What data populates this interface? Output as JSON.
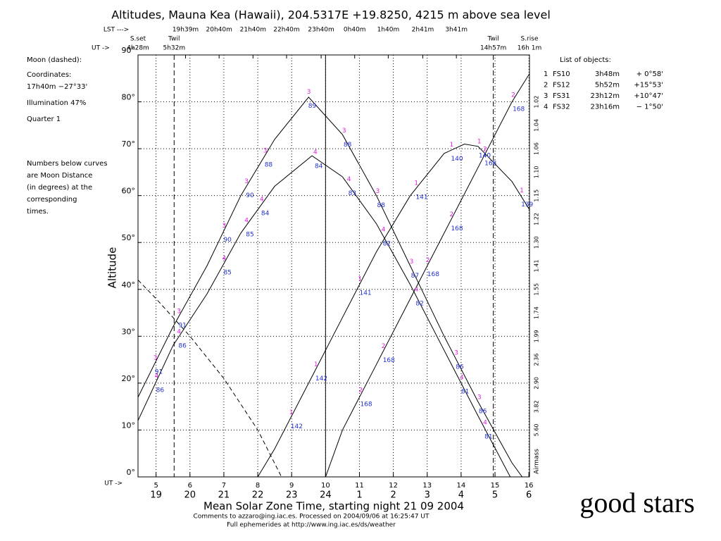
{
  "chart_data": {
    "type": "line",
    "title": "Altitudes, Mauna Kea (Hawaii), 204.5317E  +19.8250, 4215 m above sea level",
    "ylabel": "Altitude",
    "xlabel": "Mean Solar Zone Time, starting night 21 09 2004",
    "footer": [
      "Comments to azzaro@ing.iac.es. Processed on 2004/09/06 at 16:25:47 UT",
      "Full ephemerides at http://www.ing.iac.es/ds/weather"
    ],
    "caption": "good stars",
    "xlim": [
      4.467,
      16.017
    ],
    "ylim": [
      0,
      90
    ],
    "grid": true,
    "yticks": [
      {
        "value": 0,
        "label": "0°"
      },
      {
        "value": 10,
        "label": "10°"
      },
      {
        "value": 20,
        "label": "20°"
      },
      {
        "value": 30,
        "label": "30°"
      },
      {
        "value": 40,
        "label": "40°"
      },
      {
        "value": 50,
        "label": "50°"
      },
      {
        "value": 60,
        "label": "60°"
      },
      {
        "value": 70,
        "label": "70°"
      },
      {
        "value": 80,
        "label": "80°"
      },
      {
        "value": 90,
        "label": "90°"
      }
    ],
    "x_prefix": "UT ->",
    "xticks": [
      5,
      6,
      7,
      8,
      9,
      10,
      11,
      12,
      13,
      14,
      15,
      16
    ],
    "x2ticks": [
      {
        "value": 5,
        "label": "19"
      },
      {
        "value": 6,
        "label": "20"
      },
      {
        "value": 7,
        "label": "21"
      },
      {
        "value": 8,
        "label": "22"
      },
      {
        "value": 9,
        "label": "23"
      },
      {
        "value": 10,
        "label": "24"
      },
      {
        "value": 11,
        "label": "1"
      },
      {
        "value": 12,
        "label": "2"
      },
      {
        "value": 13,
        "label": "3"
      },
      {
        "value": 14,
        "label": "4"
      },
      {
        "value": 15,
        "label": "5"
      },
      {
        "value": 16,
        "label": "6"
      }
    ],
    "lst_prefix": "LST --->",
    "lst_ticks": [
      {
        "value": 5.87,
        "label": "19h39m"
      },
      {
        "value": 6.86,
        "label": "20h40m"
      },
      {
        "value": 7.86,
        "label": "21h40m"
      },
      {
        "value": 8.85,
        "label": "22h40m"
      },
      {
        "value": 9.87,
        "label": "23h40m"
      },
      {
        "value": 10.86,
        "label": "0h40m"
      },
      {
        "value": 11.85,
        "label": "1h40m"
      },
      {
        "value": 12.87,
        "label": "2h41m"
      },
      {
        "value": 13.86,
        "label": "3h41m"
      }
    ],
    "ut_prefix": "UT ->",
    "events": [
      {
        "name": "S.set",
        "time": "4h28m",
        "ut": 4.467,
        "line_style": "none"
      },
      {
        "name": "Twil",
        "time": "5h32m",
        "ut": 5.533,
        "line_style": "dashed"
      },
      {
        "name": "Twil",
        "time": "14h57m",
        "ut": 14.95,
        "line_style": "dashed"
      },
      {
        "name": "S.rise",
        "time": "16h 1m",
        "ut": 16.017,
        "line_style": "none"
      }
    ],
    "midnight_ut": 10,
    "airmass_label": "Airmass",
    "airmass_ticks": [
      {
        "value": 80,
        "label": "1.02"
      },
      {
        "value": 75,
        "label": "1.04"
      },
      {
        "value": 70,
        "label": "1.06"
      },
      {
        "value": 65,
        "label": "1.10"
      },
      {
        "value": 60,
        "label": "1.15"
      },
      {
        "value": 55,
        "label": "1.22"
      },
      {
        "value": 50,
        "label": "1.30"
      },
      {
        "value": 45,
        "label": "1.41"
      },
      {
        "value": 40,
        "label": "1.55"
      },
      {
        "value": 35,
        "label": "1.74"
      },
      {
        "value": 30,
        "label": "1.99"
      },
      {
        "value": 25,
        "label": "2.36"
      },
      {
        "value": 20,
        "label": "2.90"
      },
      {
        "value": 15,
        "label": "3.82"
      },
      {
        "value": 10,
        "label": "5.60"
      }
    ],
    "moon_info": [
      "Moon (dashed):",
      "Coordinates:",
      "17h40m  −27°33'",
      "Illumination  47%",
      "Quarter      1",
      "Numbers below curves",
      "are Moon Distance",
      "(in degrees) at the",
      "corresponding",
      "times."
    ],
    "moon": {
      "color": "#000000",
      "line_style": "dashed",
      "x": [
        4.467,
        5,
        6,
        7,
        8,
        8.7
      ],
      "values": [
        42,
        38,
        30,
        21,
        10,
        0
      ]
    },
    "list_title": "List of objects:",
    "series": [
      {
        "marker": "1",
        "name": "FS10",
        "ra": "3h48m",
        "dec": "+ 0°58'",
        "color": "#000000",
        "x": [
          8,
          8.5,
          9.5,
          10.5,
          11.5,
          12.5,
          13.5,
          14.1,
          14.5,
          15.5,
          16.017
        ],
        "values": [
          0,
          6,
          20,
          34,
          48,
          60,
          69,
          71,
          70.5,
          63,
          57
        ],
        "label_x": [
          8.97,
          9.7,
          11.0,
          12.66,
          13.7,
          14.52,
          15.77
        ],
        "distance_labels": [
          "142",
          "142",
          "141",
          "141",
          "140",
          "140",
          "139"
        ]
      },
      {
        "marker": "2",
        "name": "FS12",
        "ra": "5h52m",
        "dec": "+15°53'",
        "color": "#000000",
        "x": [
          10,
          10.5,
          11.5,
          12.5,
          13.5,
          14.5,
          15.5,
          16.017
        ],
        "values": [
          0,
          10,
          24,
          38,
          52,
          66,
          80,
          86
        ],
        "label_x": [
          11.02,
          11.69,
          13.0,
          13.7,
          14.69,
          15.52
        ],
        "distance_labels": [
          "168",
          "168",
          "168",
          "168",
          "168",
          "168"
        ]
      },
      {
        "marker": "3",
        "name": "FS31",
        "ra": "23h12m",
        "dec": "+10°47'",
        "color": "#000000",
        "x": [
          4.467,
          5.5,
          6.5,
          7.5,
          8.5,
          9.5,
          10.5,
          11.5,
          12.5,
          13.5,
          14.5,
          15.5,
          15.8
        ],
        "values": [
          17,
          32,
          45,
          60,
          72,
          81,
          73,
          60,
          45,
          30,
          16,
          3,
          0
        ],
        "label_x": [
          4.96,
          5.66,
          6.99,
          7.65,
          8.2,
          9.49,
          10.53,
          11.52,
          12.52,
          13.84,
          14.52
        ],
        "distance_labels": [
          "91",
          "91",
          "90",
          "90",
          "88",
          "89",
          "88",
          "88",
          "87",
          "86",
          "86"
        ]
      },
      {
        "marker": "4",
        "name": "FS32",
        "ra": "23h16m",
        "dec": "− 1°50'",
        "color": "#000000",
        "x": [
          4.467,
          5.5,
          6.5,
          7.5,
          8.5,
          9.6,
          10.5,
          11.5,
          12.5,
          13.5,
          14.5,
          15.45
        ],
        "values": [
          12,
          28,
          39,
          52,
          62,
          68.5,
          64,
          54,
          41,
          27,
          13,
          0
        ],
        "label_x": [
          5.0,
          5.66,
          6.99,
          7.65,
          8.1,
          9.68,
          10.67,
          11.69,
          12.66,
          14.0,
          14.69
        ],
        "distance_labels": [
          "86",
          "86",
          "85",
          "85",
          "84",
          "84",
          "83",
          "82",
          "82",
          "81",
          "81"
        ]
      }
    ],
    "marker_color": "#e020e0",
    "distance_color": "#2030d0"
  }
}
